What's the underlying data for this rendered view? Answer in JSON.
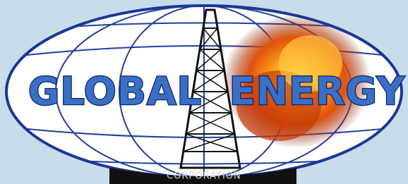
{
  "logo": {
    "word1": "GLOBAL",
    "word2": "ENERGY",
    "subtitle": "CORPORATION"
  }
}
